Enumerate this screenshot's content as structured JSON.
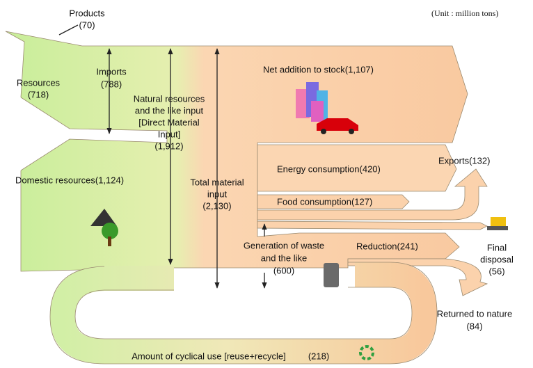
{
  "unit": "(Unit : million tons)",
  "nodes": [
    {
      "lines": [
        "Products",
        "(70)"
      ]
    },
    {
      "lines": [
        "Resources",
        "(718)"
      ]
    },
    {
      "lines": [
        "Imports",
        "(788)"
      ]
    },
    {
      "lines": [
        "Natural resources",
        "and the like input",
        "[Direct Material",
        "Input]",
        "(1,912)"
      ]
    },
    {
      "lines": [
        "Net addition to stock(1,107)"
      ]
    },
    {
      "lines": [
        "Domestic resources(1,124)"
      ]
    },
    {
      "lines": [
        "Total material",
        "input",
        "(2,130)"
      ]
    },
    {
      "lines": [
        "Energy consumption(420)"
      ]
    },
    {
      "lines": [
        "Food consumption(127)"
      ]
    },
    {
      "lines": [
        "Exports(132)"
      ]
    },
    {
      "lines": [
        "Generation of waste",
        "and the like",
        "(600)"
      ]
    },
    {
      "lines": [
        "Reduction(241)"
      ]
    },
    {
      "lines": [
        "Final",
        "disposal",
        "(56)"
      ]
    },
    {
      "lines": [
        "Returned to nature",
        "(84)"
      ]
    },
    {
      "lines": [
        "Amount of cyclical use [reuse+recycle]",
        "(218)"
      ]
    }
  ]
}
